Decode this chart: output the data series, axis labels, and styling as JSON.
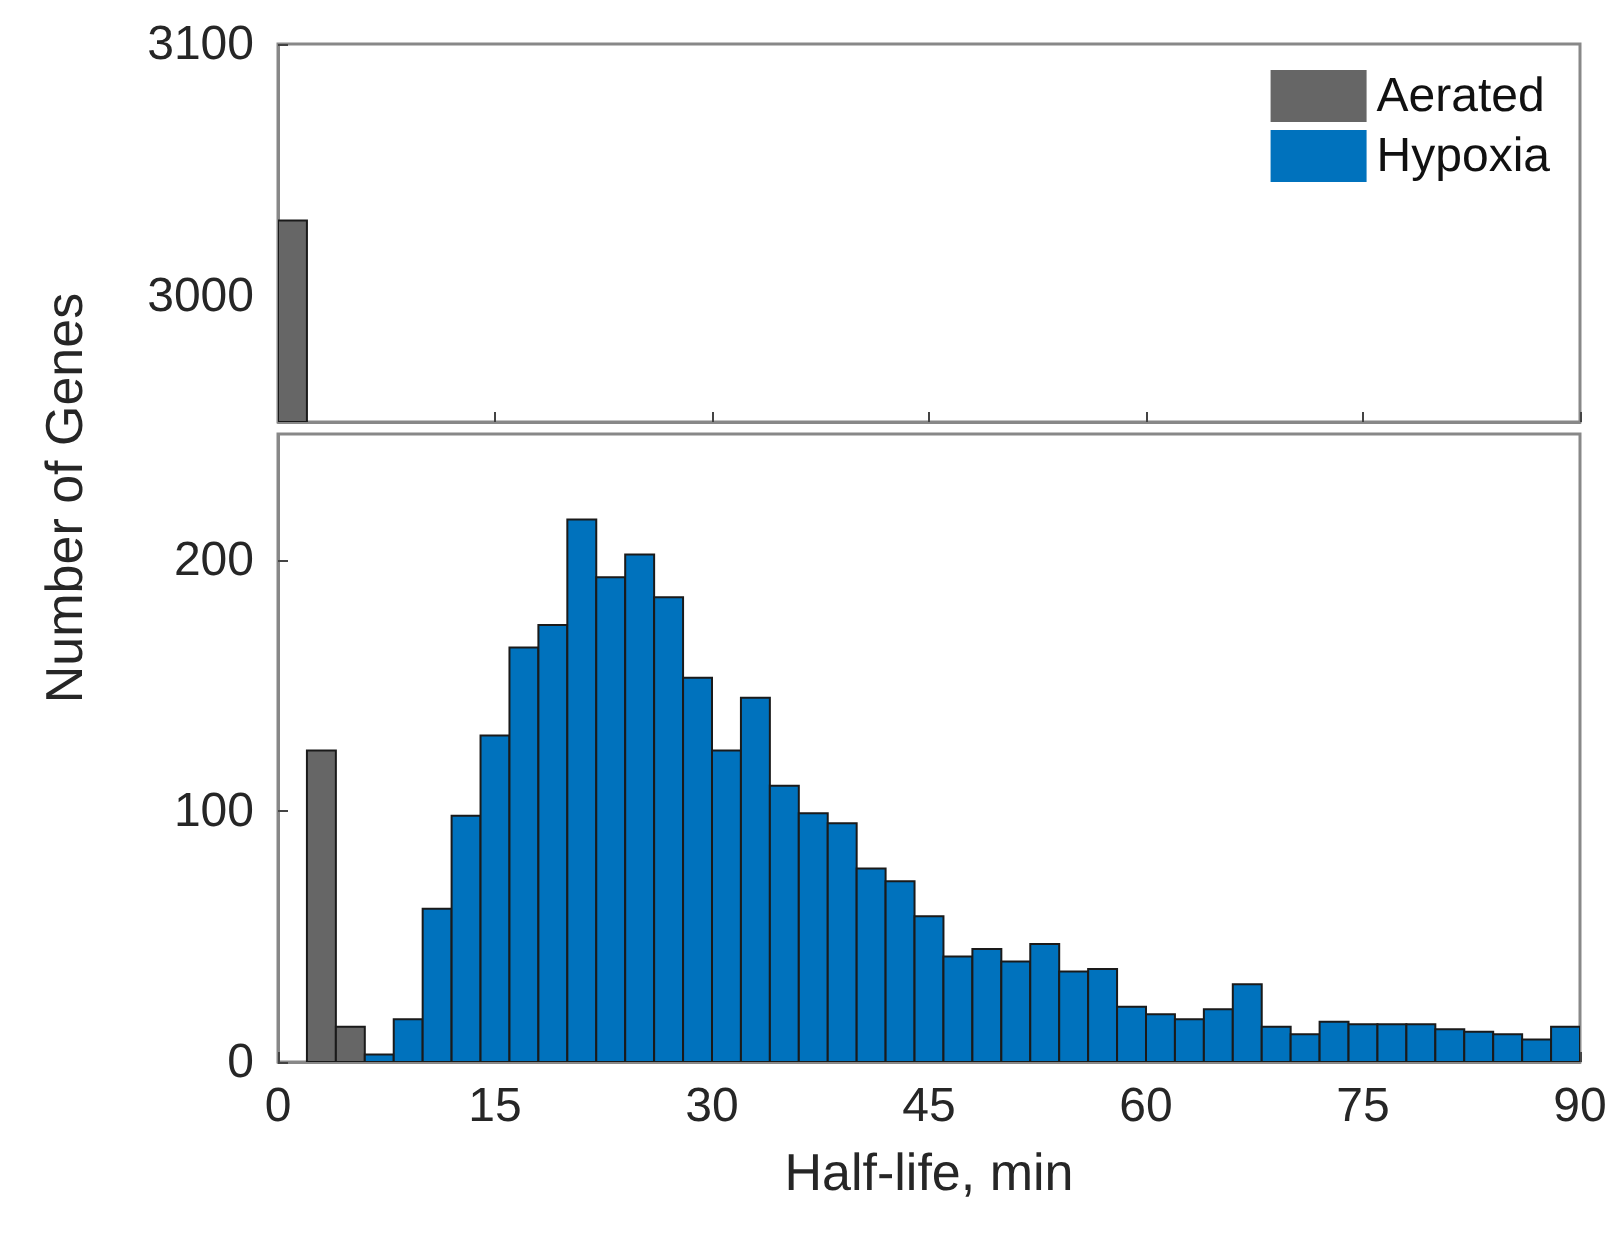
{
  "chart_data": [
    {
      "type": "histogram",
      "bins": [
        0,
        2,
        4,
        6,
        8,
        10,
        12,
        14,
        16,
        18,
        20,
        22,
        24,
        26,
        28,
        30,
        32,
        34,
        36,
        38,
        40,
        42,
        44,
        46,
        48,
        50,
        52,
        54,
        56,
        58,
        60,
        62,
        64,
        66,
        68,
        70,
        72,
        74,
        76,
        78,
        80,
        82,
        84,
        86,
        88,
        90
      ],
      "xlim": [
        0,
        90
      ],
      "xticks": [
        0,
        15,
        30,
        45,
        60,
        75,
        90
      ],
      "ylim": [
        2950,
        3100
      ],
      "yticks": [
        3000,
        3100
      ],
      "tick_labels": "y",
      "grid": false,
      "series": [
        {
          "color": "#666666",
          "values": [
            3030,
            null,
            null,
            null,
            null,
            null,
            null,
            null,
            null,
            null,
            null,
            null,
            null,
            null,
            null,
            null,
            null,
            null,
            null,
            null,
            null,
            null,
            null,
            null,
            null,
            null,
            null,
            null,
            null,
            null,
            null,
            null,
            null,
            null,
            null,
            null,
            null,
            null,
            null,
            null,
            null,
            null,
            null,
            null,
            null
          ]
        }
      ]
    },
    {
      "type": "histogram",
      "bins": [
        0,
        2,
        4,
        6,
        8,
        10,
        12,
        14,
        16,
        18,
        20,
        22,
        24,
        26,
        28,
        30,
        32,
        34,
        36,
        38,
        40,
        42,
        44,
        46,
        48,
        50,
        52,
        54,
        56,
        58,
        60,
        62,
        64,
        66,
        68,
        70,
        72,
        74,
        76,
        78,
        80,
        82,
        84,
        86,
        88,
        90
      ],
      "xlim": [
        0,
        90
      ],
      "xticks": [
        0,
        15,
        30,
        45,
        60,
        75,
        90
      ],
      "ylim": [
        0,
        250
      ],
      "yticks": [
        0,
        100,
        200
      ],
      "xlabel": "Half-life, min",
      "ylabel": "Number of Genes",
      "grid": false,
      "legend": "top right",
      "series": [
        {
          "name": "Aerated",
          "color": "#666666",
          "values": [
            null,
            124,
            14,
            null,
            null,
            null,
            null,
            null,
            null,
            null,
            null,
            null,
            null,
            null,
            null,
            null,
            null,
            null,
            null,
            null,
            null,
            null,
            null,
            null,
            null,
            null,
            null,
            null,
            null,
            null,
            null,
            null,
            null,
            null,
            null,
            null,
            null,
            null,
            null,
            null,
            null,
            null,
            null,
            null,
            null
          ]
        },
        {
          "name": "Hypoxia",
          "color": "#0072bd",
          "values": [
            null,
            null,
            null,
            3,
            17,
            61,
            98,
            130,
            165,
            174,
            216,
            193,
            202,
            185,
            153,
            124,
            145,
            110,
            99,
            95,
            77,
            72,
            58,
            42,
            45,
            40,
            47,
            36,
            37,
            22,
            19,
            17,
            21,
            31,
            14,
            11,
            16,
            15,
            15,
            15,
            13,
            12,
            11,
            9,
            14
          ]
        }
      ]
    }
  ]
}
